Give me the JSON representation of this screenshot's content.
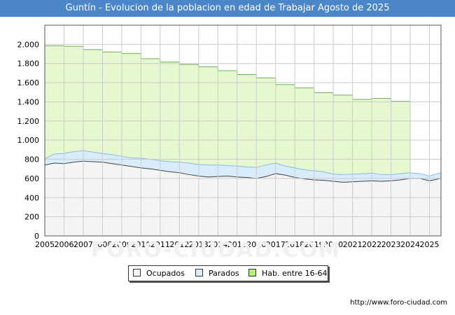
{
  "header": {
    "title": "Guntín - Evolucion de la poblacion en edad de Trabajar Agosto de 2025"
  },
  "watermark": "FORO-CIUDAD.COM",
  "source": "http://www.foro-ciudad.com",
  "colors": {
    "title_bg": "#4a86c8",
    "hab_fill": "#e6f8cf",
    "hab_line": "#6fae5a",
    "parados_fill": "#d8ecfb",
    "parados_line": "#88b9e4",
    "ocupados_fill": "#f4f4f4",
    "ocupados_line": "#444444",
    "grid": "#cccccc"
  },
  "chart_data": {
    "type": "area",
    "title": "Guntín - Evolucion de la poblacion en edad de Trabajar Agosto de 2025",
    "xlabel": "",
    "ylabel": "",
    "xlim": [
      2005,
      2025.6
    ],
    "ylim": [
      0,
      2200
    ],
    "yticks": [
      0,
      200,
      400,
      600,
      800,
      1000,
      1200,
      1400,
      1600,
      1800,
      2000
    ],
    "ytick_labels": [
      "0",
      "200",
      "400",
      "600",
      "800",
      "1.000",
      "1.200",
      "1.400",
      "1.600",
      "1.800",
      "2.000"
    ],
    "xticks": [
      2005,
      2006,
      2007,
      2008,
      2009,
      2010,
      2011,
      2012,
      2013,
      2014,
      2015,
      2016,
      2017,
      2018,
      2019,
      2020,
      2021,
      2022,
      2023,
      2024,
      2025
    ],
    "xtick_labels": [
      "2005",
      "2006",
      "2007",
      "2008",
      "2009",
      "2010",
      "2011",
      "2012",
      "2013",
      "2014",
      "2015",
      "2016",
      "2017",
      "2018",
      "2019",
      "2020",
      "2021",
      "2022",
      "2023",
      "2024",
      "2025"
    ],
    "grid": true,
    "legend_position": "bottom",
    "series": [
      {
        "name": "Hab. entre 16-64",
        "x": [
          2005,
          2006,
          2007,
          2008,
          2009,
          2010,
          2011,
          2012,
          2013,
          2014,
          2015,
          2016,
          2017,
          2018,
          2019,
          2020,
          2021,
          2022,
          2023
        ],
        "values": [
          1985,
          1980,
          1945,
          1920,
          1905,
          1850,
          1815,
          1790,
          1765,
          1725,
          1685,
          1650,
          1580,
          1545,
          1495,
          1470,
          1425,
          1435,
          1405
        ]
      },
      {
        "name": "Parados",
        "x": [
          2005,
          2005.5,
          2006,
          2006.5,
          2007,
          2007.5,
          2008,
          2008.5,
          2009,
          2009.5,
          2010,
          2010.5,
          2011,
          2011.5,
          2012,
          2012.5,
          2013,
          2013.5,
          2014,
          2014.5,
          2015,
          2015.5,
          2016,
          2016.5,
          2017,
          2017.5,
          2018,
          2018.5,
          2019,
          2019.5,
          2020,
          2020.5,
          2021,
          2021.5,
          2022,
          2022.5,
          2023,
          2023.5,
          2024,
          2024.5,
          2025,
          2025.58
        ],
        "values": [
          805,
          855,
          860,
          880,
          890,
          875,
          860,
          850,
          830,
          815,
          810,
          800,
          785,
          775,
          770,
          760,
          745,
          740,
          740,
          735,
          730,
          720,
          715,
          740,
          760,
          730,
          710,
          690,
          680,
          670,
          645,
          640,
          645,
          650,
          655,
          640,
          640,
          650,
          660,
          650,
          625,
          660
        ]
      },
      {
        "name": "Ocupados",
        "x": [
          2005,
          2005.5,
          2006,
          2006.5,
          2007,
          2007.5,
          2008,
          2008.5,
          2009,
          2009.5,
          2010,
          2010.5,
          2011,
          2011.5,
          2012,
          2012.5,
          2013,
          2013.5,
          2014,
          2014.5,
          2015,
          2015.5,
          2016,
          2016.5,
          2017,
          2017.5,
          2018,
          2018.5,
          2019,
          2019.5,
          2020,
          2020.5,
          2021,
          2021.5,
          2022,
          2022.5,
          2023,
          2023.5,
          2024,
          2024.5,
          2025,
          2025.58
        ],
        "values": [
          740,
          760,
          755,
          770,
          780,
          775,
          770,
          755,
          740,
          725,
          710,
          700,
          685,
          670,
          660,
          640,
          625,
          615,
          620,
          625,
          615,
          610,
          600,
          620,
          650,
          635,
          610,
          595,
          585,
          580,
          570,
          560,
          565,
          570,
          575,
          570,
          575,
          585,
          600,
          600,
          575,
          600
        ]
      }
    ]
  },
  "legend": [
    {
      "name": "Ocupados",
      "color": "#f4f4f4"
    },
    {
      "name": "Parados",
      "color": "#d8ecfb"
    },
    {
      "name": "Hab. entre 16-64",
      "color": "#b4f07c"
    }
  ]
}
